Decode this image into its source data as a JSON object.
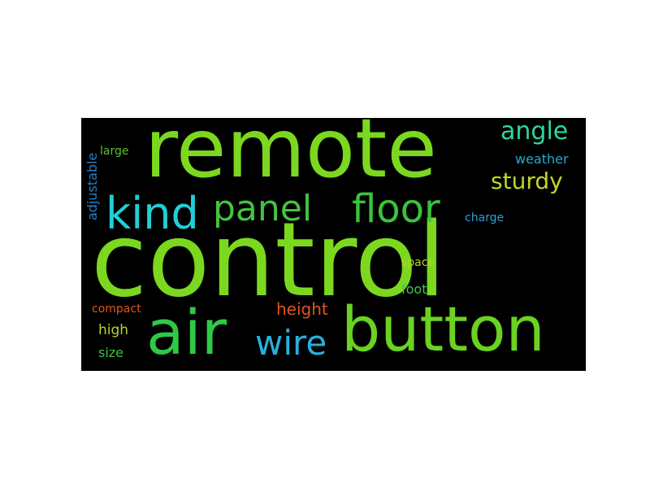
{
  "words": [
    {
      "text": "control",
      "color": "#7bd81f"
    },
    {
      "text": "remote",
      "color": "#7bd81f"
    },
    {
      "text": "button",
      "color": "#6ad221"
    },
    {
      "text": "air",
      "color": "#2ec946"
    },
    {
      "text": "floor",
      "color": "#39c33c"
    },
    {
      "text": "kind",
      "color": "#22cfd6"
    },
    {
      "text": "panel",
      "color": "#45c242"
    },
    {
      "text": "wire",
      "color": "#28b1dd"
    },
    {
      "text": "angle",
      "color": "#2dd79c"
    },
    {
      "text": "sturdy",
      "color": "#c0d724"
    },
    {
      "text": "height",
      "color": "#e0561e"
    },
    {
      "text": "weather",
      "color": "#26a9d0"
    },
    {
      "text": "adjustable",
      "color": "#2a7fc8"
    },
    {
      "text": "large",
      "color": "#5bc22e"
    },
    {
      "text": "charge",
      "color": "#2f9fd2"
    },
    {
      "text": "space",
      "color": "#b9d12b"
    },
    {
      "text": "foot",
      "color": "#3fc452"
    },
    {
      "text": "compact",
      "color": "#e0561e"
    },
    {
      "text": "high",
      "color": "#b9d12b"
    },
    {
      "text": "size",
      "color": "#3cc33a"
    }
  ]
}
